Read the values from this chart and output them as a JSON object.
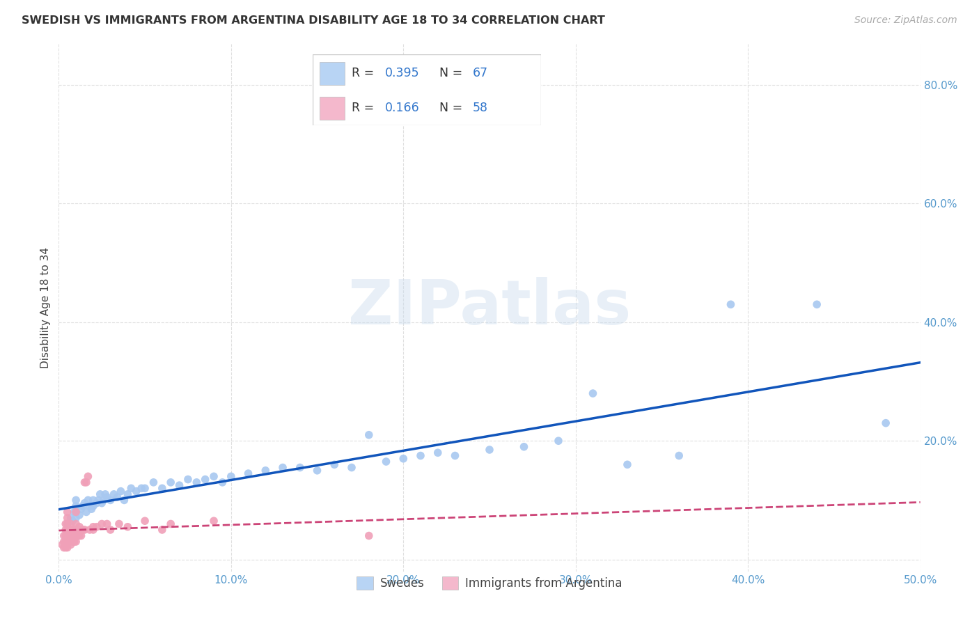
{
  "title": "SWEDISH VS IMMIGRANTS FROM ARGENTINA DISABILITY AGE 18 TO 34 CORRELATION CHART",
  "source": "Source: ZipAtlas.com",
  "ylabel": "Disability Age 18 to 34",
  "xlim": [
    0.0,
    0.5
  ],
  "ylim": [
    -0.02,
    0.87
  ],
  "xticks": [
    0.0,
    0.1,
    0.2,
    0.3,
    0.4,
    0.5
  ],
  "yticks": [
    0.0,
    0.2,
    0.4,
    0.6,
    0.8
  ],
  "xtick_labels": [
    "0.0%",
    "10.0%",
    "20.0%",
    "30.0%",
    "40.0%",
    "50.0%"
  ],
  "ytick_labels": [
    "",
    "20.0%",
    "40.0%",
    "60.0%",
    "80.0%"
  ],
  "blue_scatter_color": "#a8c8f0",
  "pink_scatter_color": "#f0a0b8",
  "blue_line_color": "#1155bb",
  "pink_line_color": "#cc4477",
  "legend_blue_color": "#b8d4f4",
  "legend_pink_color": "#f4b8cc",
  "r_blue": 0.395,
  "n_blue": 67,
  "r_pink": 0.166,
  "n_pink": 58,
  "watermark_text": "ZIPatlas",
  "swedes_x": [
    0.005,
    0.007,
    0.008,
    0.009,
    0.01,
    0.01,
    0.01,
    0.01,
    0.012,
    0.013,
    0.014,
    0.015,
    0.016,
    0.017,
    0.018,
    0.019,
    0.02,
    0.02,
    0.022,
    0.023,
    0.024,
    0.025,
    0.026,
    0.027,
    0.028,
    0.03,
    0.032,
    0.034,
    0.036,
    0.038,
    0.04,
    0.042,
    0.045,
    0.048,
    0.05,
    0.055,
    0.06,
    0.065,
    0.07,
    0.075,
    0.08,
    0.085,
    0.09,
    0.095,
    0.1,
    0.11,
    0.12,
    0.13,
    0.14,
    0.15,
    0.16,
    0.17,
    0.18,
    0.19,
    0.2,
    0.21,
    0.22,
    0.23,
    0.25,
    0.27,
    0.29,
    0.31,
    0.33,
    0.36,
    0.39,
    0.44,
    0.48
  ],
  "swedes_y": [
    0.06,
    0.07,
    0.065,
    0.08,
    0.07,
    0.09,
    0.08,
    0.1,
    0.075,
    0.085,
    0.09,
    0.095,
    0.08,
    0.1,
    0.09,
    0.085,
    0.09,
    0.1,
    0.095,
    0.1,
    0.11,
    0.095,
    0.1,
    0.11,
    0.105,
    0.1,
    0.11,
    0.105,
    0.115,
    0.1,
    0.11,
    0.12,
    0.115,
    0.12,
    0.12,
    0.13,
    0.12,
    0.13,
    0.125,
    0.135,
    0.13,
    0.135,
    0.14,
    0.13,
    0.14,
    0.145,
    0.15,
    0.155,
    0.155,
    0.15,
    0.16,
    0.155,
    0.21,
    0.165,
    0.17,
    0.175,
    0.18,
    0.175,
    0.185,
    0.19,
    0.2,
    0.28,
    0.16,
    0.175,
    0.43,
    0.43,
    0.23
  ],
  "argentina_x": [
    0.002,
    0.003,
    0.003,
    0.003,
    0.004,
    0.004,
    0.004,
    0.004,
    0.004,
    0.005,
    0.005,
    0.005,
    0.005,
    0.005,
    0.005,
    0.005,
    0.005,
    0.006,
    0.006,
    0.007,
    0.007,
    0.007,
    0.007,
    0.008,
    0.008,
    0.008,
    0.009,
    0.009,
    0.009,
    0.01,
    0.01,
    0.01,
    0.01,
    0.011,
    0.011,
    0.012,
    0.012,
    0.013,
    0.013,
    0.014,
    0.015,
    0.015,
    0.016,
    0.017,
    0.018,
    0.02,
    0.02,
    0.022,
    0.025,
    0.028,
    0.03,
    0.035,
    0.04,
    0.05,
    0.06,
    0.065,
    0.09,
    0.18
  ],
  "argentina_y": [
    0.025,
    0.02,
    0.03,
    0.04,
    0.02,
    0.03,
    0.04,
    0.05,
    0.06,
    0.02,
    0.025,
    0.03,
    0.04,
    0.05,
    0.06,
    0.07,
    0.08,
    0.03,
    0.04,
    0.025,
    0.035,
    0.05,
    0.06,
    0.03,
    0.04,
    0.05,
    0.03,
    0.04,
    0.05,
    0.03,
    0.04,
    0.06,
    0.08,
    0.04,
    0.05,
    0.04,
    0.055,
    0.04,
    0.05,
    0.05,
    0.13,
    0.05,
    0.13,
    0.14,
    0.05,
    0.05,
    0.055,
    0.055,
    0.06,
    0.06,
    0.05,
    0.06,
    0.055,
    0.065,
    0.05,
    0.06,
    0.065,
    0.04
  ],
  "background_color": "#ffffff",
  "grid_color": "#e0e0e0"
}
